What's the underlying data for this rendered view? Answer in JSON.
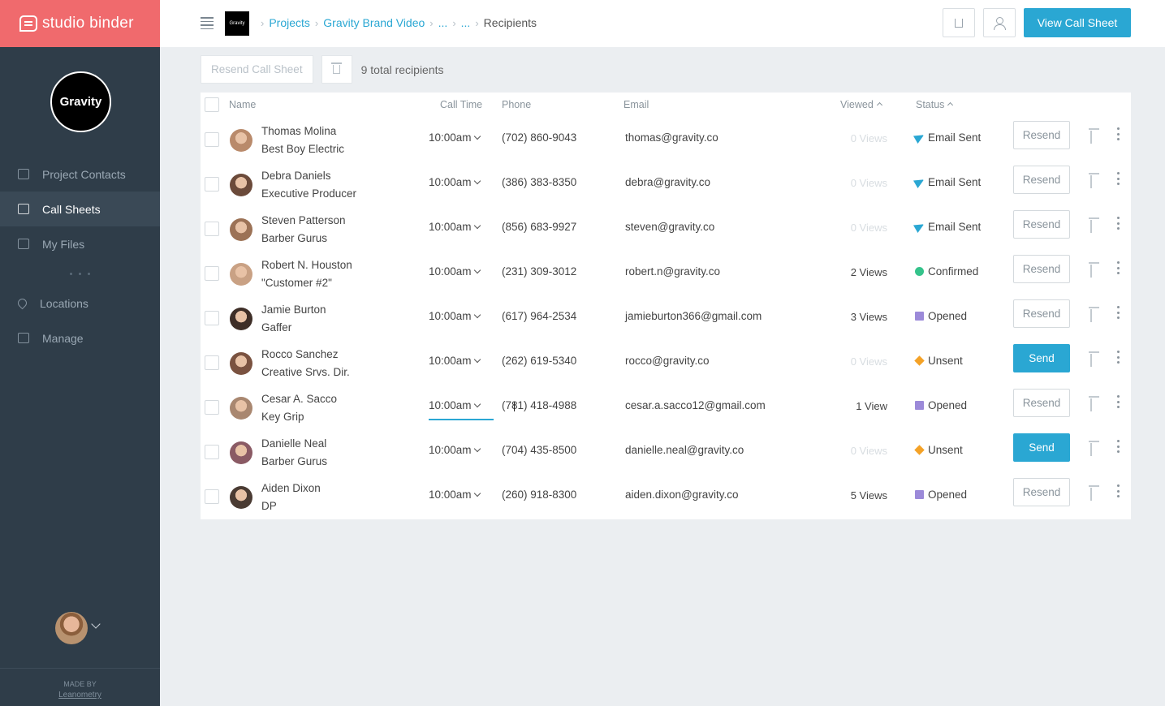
{
  "brand": {
    "name": "studio binder"
  },
  "org": {
    "logo_text": "Gravity"
  },
  "sidebar": {
    "items": [
      {
        "label": "Project Contacts",
        "icon": "contacts-icon",
        "active": false
      },
      {
        "label": "Call Sheets",
        "icon": "calendar-icon",
        "active": true
      },
      {
        "label": "My Files",
        "icon": "folder-icon",
        "active": false
      },
      {
        "label": "Locations",
        "icon": "location-pin-icon",
        "active": false
      },
      {
        "label": "Manage",
        "icon": "sliders-icon",
        "active": false
      }
    ],
    "made_by": "MADE BY",
    "made_by_link": "Leanometry"
  },
  "header": {
    "project_thumb": "Gravity",
    "breadcrumbs": [
      "Projects",
      "Gravity Brand Video",
      "...",
      "..."
    ],
    "current": "Recipients",
    "view_button": "View Call Sheet"
  },
  "toolbar": {
    "resend_label": "Resend Call Sheet",
    "total_text": "9 total recipients"
  },
  "table": {
    "columns": {
      "name": "Name",
      "call_time": "Call Time",
      "phone": "Phone",
      "email": "Email",
      "viewed": "Viewed",
      "status": "Status"
    },
    "rows": [
      {
        "name": "Thomas Molina",
        "role": "Best Boy Electric",
        "call_time": "10:00am",
        "phone": "(702) 860-9043",
        "email": "thomas@gravity.co",
        "views": "0 Views",
        "status": "Email Sent",
        "status_type": "sent",
        "action": "Resend"
      },
      {
        "name": "Debra Daniels",
        "role": "Executive Producer",
        "call_time": "10:00am",
        "phone": "(386) 383-8350",
        "email": "debra@gravity.co",
        "views": "0 Views",
        "status": "Email Sent",
        "status_type": "sent",
        "action": "Resend"
      },
      {
        "name": "Steven Patterson",
        "role": "Barber Gurus",
        "call_time": "10:00am",
        "phone": "(856) 683-9927",
        "email": "steven@gravity.co",
        "views": "0 Views",
        "status": "Email Sent",
        "status_type": "sent",
        "action": "Resend"
      },
      {
        "name": "Robert N. Houston",
        "role": "\"Customer #2\"",
        "call_time": "10:00am",
        "phone": "(231) 309-3012",
        "email": "robert.n@gravity.co",
        "views": "2 Views",
        "status": "Confirmed",
        "status_type": "confirmed",
        "action": "Resend"
      },
      {
        "name": "Jamie Burton",
        "role": "Gaffer",
        "call_time": "10:00am",
        "phone": "(617) 964-2534",
        "email": "jamieburton366@gmail.com",
        "views": "3 Views",
        "status": "Opened",
        "status_type": "opened",
        "action": "Resend"
      },
      {
        "name": "Rocco Sanchez",
        "role": "Creative Srvs. Dir.",
        "call_time": "10:00am",
        "phone": "(262) 619-5340",
        "email": "rocco@gravity.co",
        "views": "0 Views",
        "status": "Unsent",
        "status_type": "unsent",
        "action": "Send"
      },
      {
        "name": "Cesar A. Sacco",
        "role": "Key Grip",
        "call_time": "10:00am",
        "phone": "(781) 418-4988",
        "email": "cesar.a.sacco12@gmail.com",
        "views": "1 View",
        "status": "Opened",
        "status_type": "opened",
        "action": "Resend"
      },
      {
        "name": "Danielle Neal",
        "role": "Barber Gurus",
        "call_time": "10:00am",
        "phone": "(704) 435-8500",
        "email": "danielle.neal@gravity.co",
        "views": "0 Views",
        "status": "Unsent",
        "status_type": "unsent",
        "action": "Send"
      },
      {
        "name": "Aiden Dixon",
        "role": "DP",
        "call_time": "10:00am",
        "phone": "(260) 918-8300",
        "email": "aiden.dixon@gravity.co",
        "views": "5 Views",
        "status": "Opened",
        "status_type": "opened",
        "action": "Resend"
      }
    ]
  },
  "colors": {
    "accent": "#2aa7d3",
    "brand": "#f06a6d",
    "sidebar": "#2f3d49",
    "confirmed": "#35c38b",
    "opened": "#9c8ad9",
    "unsent": "#f4a227"
  }
}
